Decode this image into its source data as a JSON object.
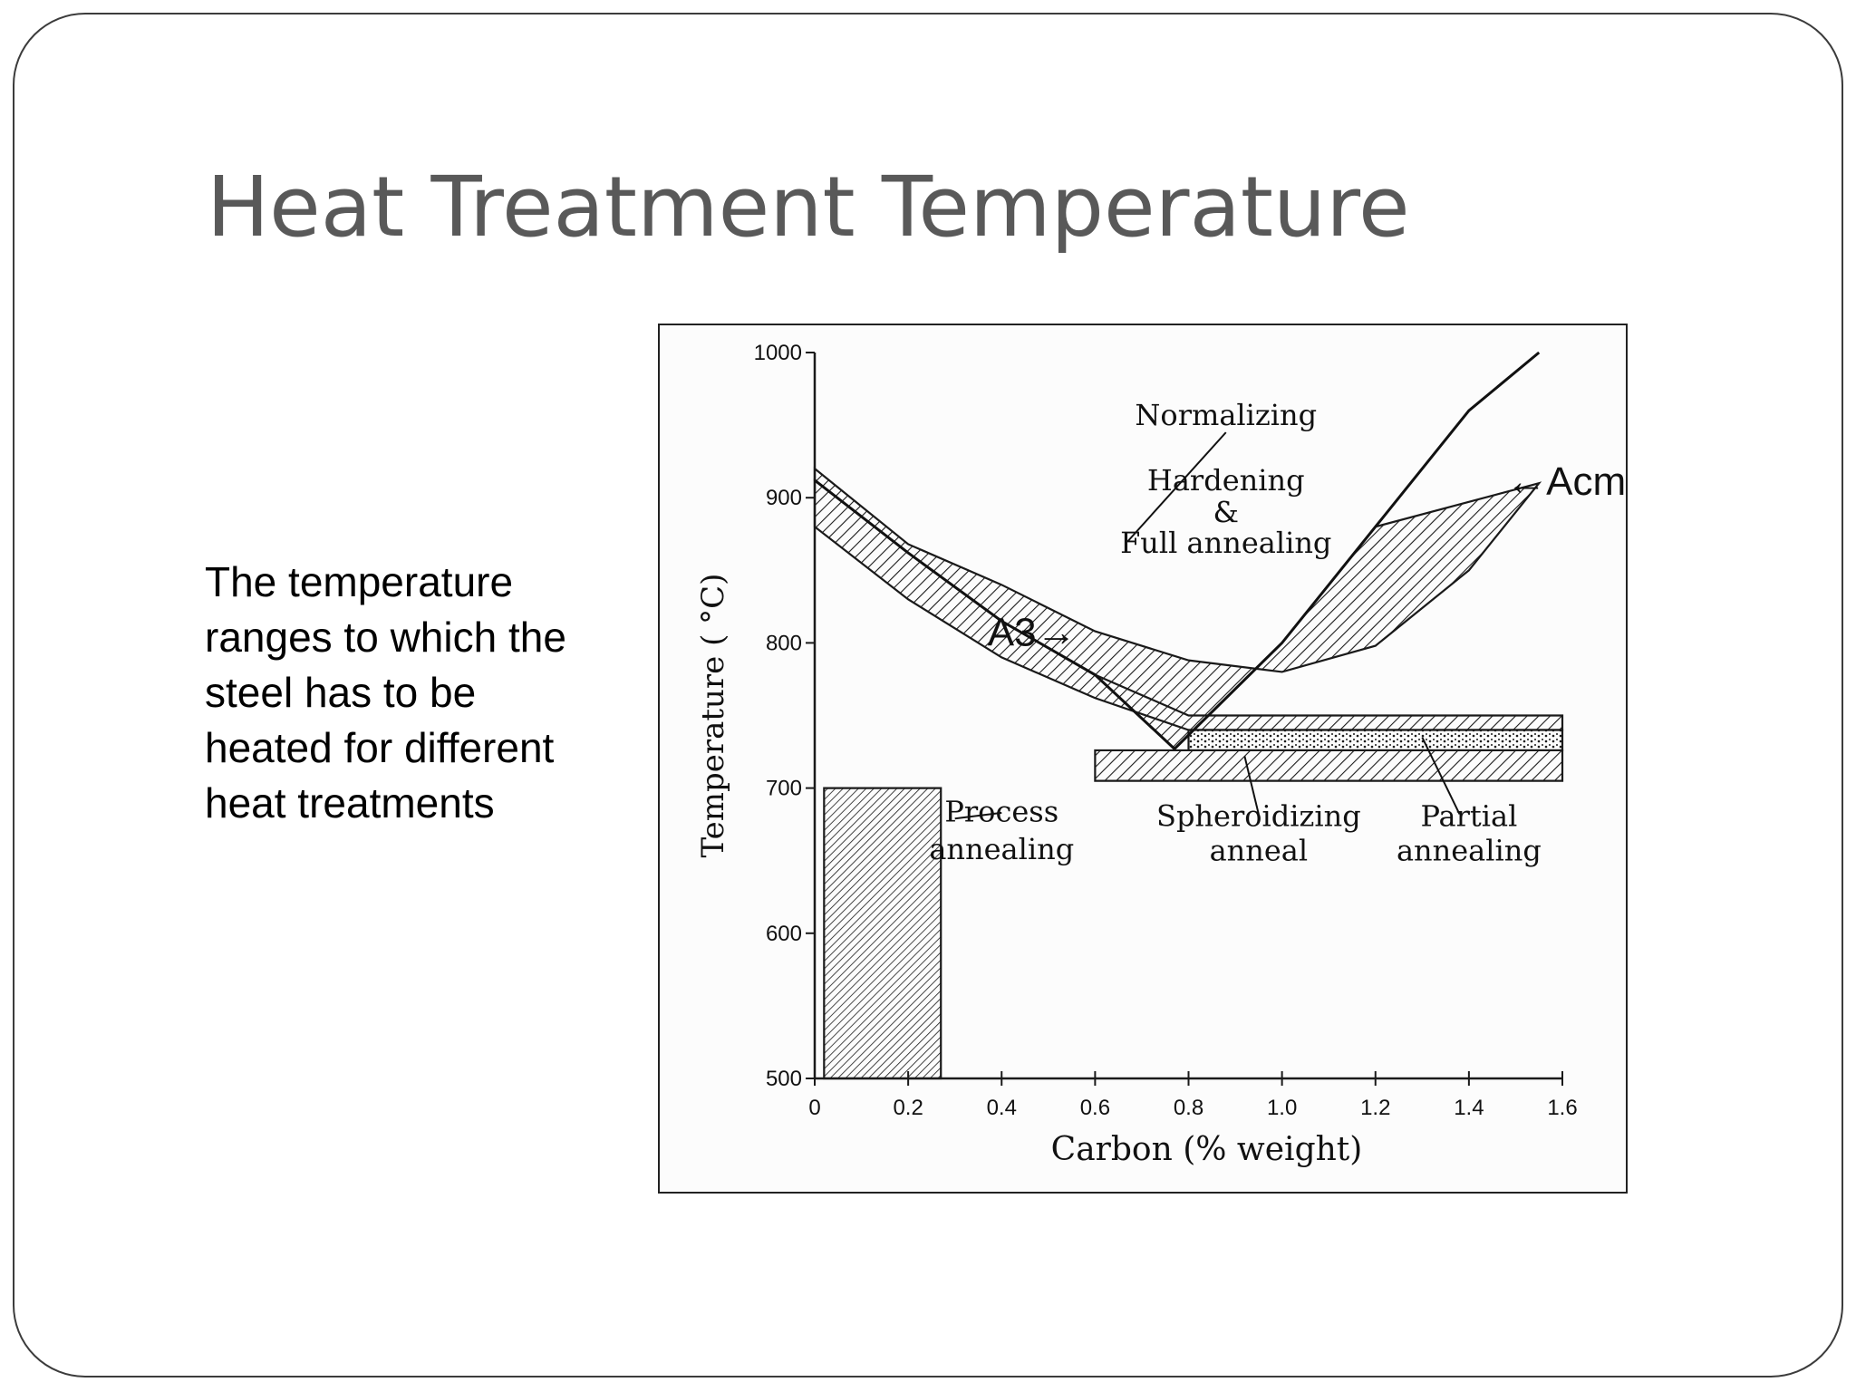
{
  "slide": {
    "title": "Heat Treatment Temperature",
    "body_lines": [
      "The temperature",
      "ranges to which the",
      "steel has to be",
      "heated for different",
      "heat treatments"
    ]
  },
  "chart_data": {
    "type": "area",
    "title": "",
    "xlabel": "Carbon (% weight)",
    "ylabel": "Temperature ( °C)",
    "xlim": [
      0,
      1.6
    ],
    "ylim": [
      500,
      1000
    ],
    "x_ticks": [
      0,
      0.2,
      0.4,
      0.6,
      0.8,
      1.0,
      1.2,
      1.4,
      1.6
    ],
    "x_tick_labels": [
      "0",
      "0.2",
      "0.4",
      "0.6",
      "0.8",
      "1.0",
      "1.2",
      "1.4",
      "1.6"
    ],
    "y_ticks": [
      500,
      600,
      700,
      800,
      900,
      1000
    ],
    "y_tick_labels": [
      "500",
      "600",
      "700",
      "800",
      "900",
      "1000"
    ],
    "lines": [
      {
        "name": "A3",
        "points": [
          [
            0,
            912
          ],
          [
            0.2,
            862
          ],
          [
            0.4,
            815
          ],
          [
            0.6,
            778
          ],
          [
            0.77,
            727
          ]
        ]
      },
      {
        "name": "Acm",
        "points": [
          [
            0.77,
            727
          ],
          [
            1.0,
            800
          ],
          [
            1.2,
            880
          ],
          [
            1.4,
            960
          ],
          [
            1.55,
            1000
          ]
        ]
      }
    ],
    "regions": [
      {
        "name": "Normalizing",
        "upper": [
          [
            0,
            920
          ],
          [
            0.2,
            868
          ],
          [
            0.4,
            840
          ],
          [
            0.6,
            808
          ],
          [
            0.8,
            788
          ],
          [
            1.0,
            780
          ],
          [
            1.2,
            798
          ],
          [
            1.4,
            850
          ],
          [
            1.55,
            910
          ]
        ],
        "lower": [
          [
            0,
            912
          ],
          [
            0.2,
            862
          ],
          [
            0.4,
            815
          ],
          [
            0.6,
            778
          ],
          [
            0.77,
            727
          ],
          [
            1.0,
            800
          ],
          [
            1.2,
            880
          ]
        ]
      },
      {
        "name": "Hardening & Full annealing",
        "upper": [
          [
            0,
            912
          ],
          [
            0.2,
            862
          ],
          [
            0.4,
            815
          ],
          [
            0.6,
            778
          ],
          [
            0.8,
            750
          ],
          [
            1.6,
            750
          ]
        ],
        "lower": [
          [
            0,
            880
          ],
          [
            0.2,
            830
          ],
          [
            0.4,
            790
          ],
          [
            0.6,
            762
          ],
          [
            0.8,
            740
          ],
          [
            1.6,
            740
          ]
        ]
      },
      {
        "name": "Spheroidizing anneal",
        "upper": [
          [
            0.8,
            740
          ],
          [
            1.6,
            740
          ]
        ],
        "lower": [
          [
            0.8,
            726
          ],
          [
            1.6,
            726
          ]
        ]
      },
      {
        "name": "Partial annealing",
        "upper": [
          [
            0.6,
            726
          ],
          [
            1.6,
            726
          ]
        ],
        "lower": [
          [
            0.6,
            705
          ],
          [
            1.6,
            705
          ]
        ]
      },
      {
        "name": "Process annealing",
        "upper": [
          [
            0.02,
            700
          ],
          [
            0.27,
            700
          ]
        ],
        "lower": [
          [
            0.02,
            500
          ],
          [
            0.27,
            500
          ]
        ]
      }
    ],
    "annotations": [
      {
        "text": "Normalizing",
        "x": 0.88,
        "y": 950
      },
      {
        "text": "Hardening",
        "x": 0.88,
        "y": 905
      },
      {
        "text": "&",
        "x": 0.88,
        "y": 883
      },
      {
        "text": "Full annealing",
        "x": 0.88,
        "y": 862
      },
      {
        "text": "A3→",
        "x": 0.37,
        "y": 798
      },
      {
        "text": "←Acm",
        "x": 1.48,
        "y": 902
      },
      {
        "text": "Process",
        "x": 0.4,
        "y": 677
      },
      {
        "text": "annealing",
        "x": 0.4,
        "y": 651
      },
      {
        "text": "Spheroidizing",
        "x": 0.95,
        "y": 674
      },
      {
        "text": "anneal",
        "x": 0.95,
        "y": 650
      },
      {
        "text": "Partial",
        "x": 1.4,
        "y": 674
      },
      {
        "text": "annealing",
        "x": 1.4,
        "y": 650
      }
    ],
    "grid": false,
    "legend": "none"
  }
}
